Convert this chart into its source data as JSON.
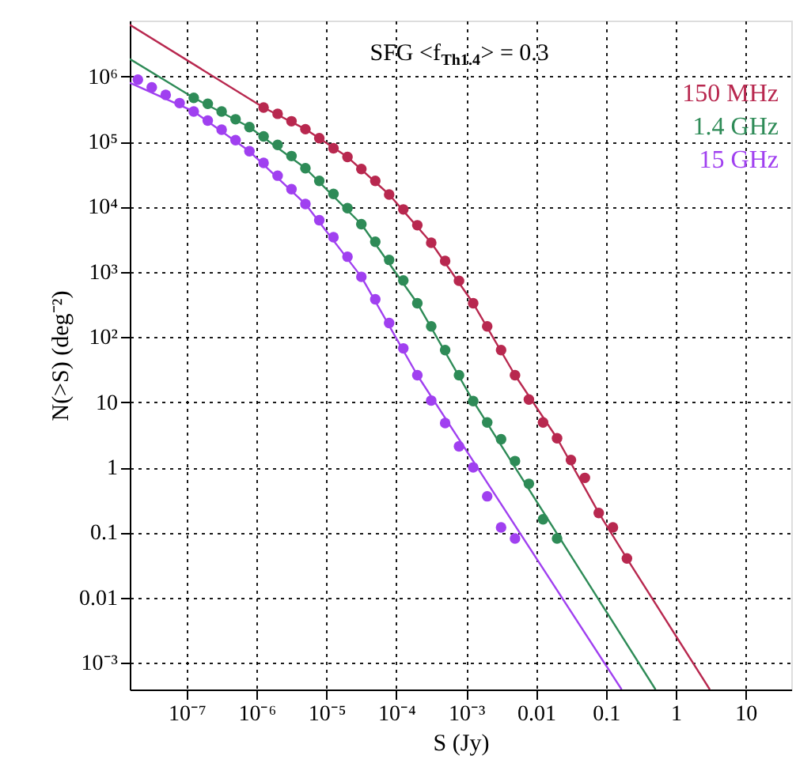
{
  "chart_data": {
    "type": "scatter",
    "xlabel": "S (Jy)",
    "ylabel": "N(>S) (deg⁻²)",
    "annotations": [
      "SFG <f$_{Th1.4}$> = 0.3"
    ],
    "log": "xy",
    "grid": true,
    "legend": "top right",
    "xlim": [
      1.53e-08,
      45
    ],
    "ylim": [
      0.00039,
      7200000
    ],
    "xticks": [
      {
        "value": 1e-07,
        "label": "10⁻⁷"
      },
      {
        "value": 1e-06,
        "label": "10⁻⁶"
      },
      {
        "value": 1e-05,
        "label": "10⁻⁵"
      },
      {
        "value": 0.0001,
        "label": "10⁻⁴"
      },
      {
        "value": 0.001,
        "label": "10⁻³"
      },
      0.01,
      0.1,
      1,
      10
    ],
    "yticks": [
      {
        "value": 0.001,
        "label": "10⁻³"
      },
      0.01,
      0.1,
      1,
      10,
      {
        "value": 100,
        "label": "10²"
      },
      {
        "value": 1000,
        "label": "10³"
      },
      {
        "value": 10000,
        "label": "10⁴"
      },
      {
        "value": 100000,
        "label": "10⁵"
      },
      {
        "value": 1000000,
        "label": "10⁶"
      }
    ],
    "series": [
      {
        "name": "150 MHz",
        "marker": "circle",
        "color": "#b8284f",
        "x": [
          1.26e-06,
          2e-06,
          3.16e-06,
          5e-06,
          7.9e-06,
          1.26e-05,
          2e-05,
          3.16e-05,
          5e-05,
          7.9e-05,
          0.000126,
          0.0002,
          0.000316,
          0.0005,
          0.00079,
          0.00126,
          0.002,
          0.00316,
          0.005,
          0.0079,
          0.0126,
          0.02,
          0.0316,
          0.05,
          0.079,
          0.126,
          0.2
        ],
        "values": [
          333000,
          267000,
          205000,
          155000,
          113000,
          79000,
          58000,
          38000,
          25000,
          15400,
          9100,
          5200,
          2800,
          1470,
          730,
          330,
          146,
          63,
          26,
          11,
          4.9,
          2.8,
          1.3,
          0.69,
          0.2,
          0.12,
          0.04
        ]
      },
      {
        "name": "1.4 GHz",
        "marker": "circle",
        "color": "#2e8b57",
        "x": [
          1.26e-07,
          2e-07,
          3.16e-07,
          5e-07,
          7.9e-07,
          1.26e-06,
          2e-06,
          3.16e-06,
          5e-06,
          7.9e-06,
          1.26e-05,
          2e-05,
          3.16e-05,
          5e-05,
          7.9e-05,
          0.000126,
          0.0002,
          0.000316,
          0.0005,
          0.00079,
          0.00126,
          0.002,
          0.00316,
          0.005,
          0.0079,
          0.0126,
          0.02
        ],
        "values": [
          470000,
          380000,
          290000,
          220000,
          167000,
          120000,
          89000,
          60000,
          39000,
          25000,
          15700,
          9500,
          5400,
          2900,
          1530,
          740,
          330,
          146,
          63,
          26,
          10.4,
          4.9,
          2.7,
          1.25,
          0.56,
          0.16,
          0.081
        ]
      },
      {
        "name": "15 GHz",
        "marker": "circle",
        "color": "#a040f0",
        "x": [
          2e-08,
          3.16e-08,
          5e-08,
          7.9e-08,
          1.26e-07,
          2e-07,
          3.16e-07,
          5e-07,
          7.9e-07,
          1.26e-06,
          2e-06,
          3.16e-06,
          5e-06,
          7.9e-06,
          1.26e-05,
          2e-05,
          3.16e-05,
          5e-05,
          7.9e-05,
          0.000126,
          0.0002,
          0.000316,
          0.0005,
          0.00079,
          0.00126,
          0.002,
          0.00316,
          0.005
        ],
        "values": [
          890000,
          680000,
          520000,
          390000,
          290000,
          210000,
          152000,
          105000,
          71000,
          47000,
          30000,
          18600,
          11000,
          6200,
          3400,
          1710,
          840,
          380,
          164,
          67,
          26,
          10.6,
          4.8,
          2.1,
          1.0,
          0.36,
          0.12,
          0.081
        ]
      },
      {
        "type": "line",
        "color": "#b8284f",
        "x": [
          1.53e-08,
          1.26e-06,
          5e-06,
          2e-05,
          7.9e-05,
          0.000316,
          0.00126,
          0.005,
          0.02,
          0.079,
          0.2,
          3.07
        ],
        "values": [
          6200000,
          333000,
          155000,
          58000,
          15400,
          2800,
          330,
          26,
          2.8,
          0.2,
          0.04,
          0.00039
        ]
      },
      {
        "type": "line",
        "color": "#2e8b57",
        "x": [
          1.53e-08,
          1.26e-07,
          7.9e-07,
          5e-06,
          3.16e-05,
          0.0002,
          0.00126,
          0.513
        ],
        "values": [
          1850000,
          470000,
          167000,
          39000,
          5400,
          330,
          10.4,
          0.00039
        ]
      },
      {
        "type": "line",
        "color": "#a040f0",
        "x": [
          1.53e-08,
          1.26e-07,
          7.9e-07,
          5e-06,
          3.16e-05,
          0.0002,
          0.168
        ],
        "values": [
          800000,
          290000,
          71000,
          11000,
          840,
          26,
          0.00039
        ]
      }
    ]
  }
}
